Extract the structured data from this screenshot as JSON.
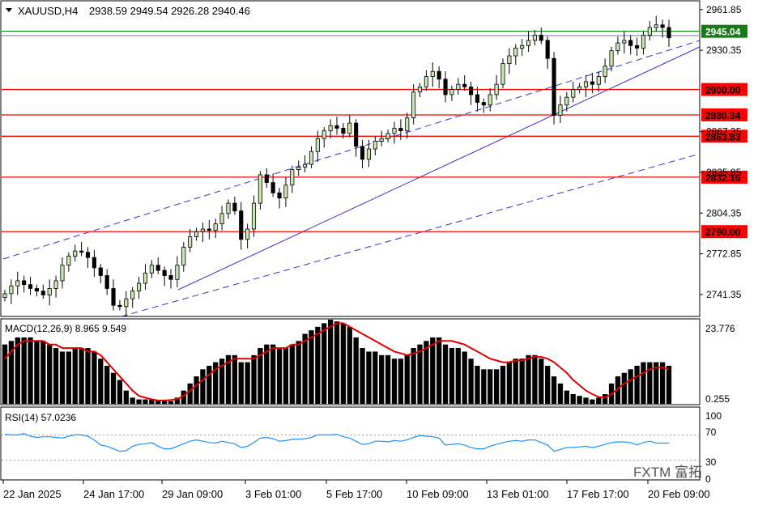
{
  "header": {
    "symbol": "XAUUSD,H4",
    "ohlc": "2938.59 2949.54 2926.28 2940.46"
  },
  "levels": [
    {
      "value": 2945.04,
      "label": "2945.04",
      "color": "#1f8a1f",
      "badge": "green"
    },
    {
      "value": 2900.0,
      "label": "2900.00",
      "color": "#ff0000",
      "badge": "red"
    },
    {
      "value": 2880.34,
      "label": "2880.34",
      "color": "#ff0000",
      "badge": "red"
    },
    {
      "value": 2863.83,
      "label": "2863.83",
      "color": "#ff0000",
      "badge": "red"
    },
    {
      "value": 2832.16,
      "label": "2832.16",
      "color": "#ff0000",
      "badge": "red"
    },
    {
      "value": 2790.0,
      "label": "2790.00",
      "color": "#ff0000",
      "badge": "red"
    }
  ],
  "macd": {
    "label": "MACD(12,26,9) 8.965 9.549",
    "top_tick": "23.776",
    "bottom_tick": "0.255"
  },
  "rsi": {
    "label": "RSI(14) 57.0236",
    "ticks": [
      "100",
      "70",
      "30",
      "0"
    ]
  },
  "watermark": "FXTM 富拓",
  "chart_data": {
    "type": "candlestick",
    "symbol": "XAUUSD",
    "timeframe": "H4",
    "price_axis": {
      "range": [
        2725,
        2968
      ],
      "ticks": [
        2961.85,
        2930.35,
        2867.35,
        2835.85,
        2804.35,
        2772.85,
        2741.35
      ],
      "tick_labels": [
        "2961.85",
        "2930.35",
        "2867.35",
        "2835.85",
        "2804.35",
        "2772.85",
        "2741.35"
      ]
    },
    "time_axis": {
      "tick_labels": [
        "22 Jan 2025",
        "24 Jan 17:00",
        "29 Jan 09:00",
        "3 Feb 01:00",
        "5 Feb 17:00",
        "10 Feb 09:00",
        "13 Feb 01:00",
        "17 Feb 17:00",
        "20 Feb 09:00"
      ]
    },
    "close": [
      2742,
      2748,
      2752,
      2749,
      2746,
      2744,
      2741,
      2746,
      2752,
      2764,
      2771,
      2775,
      2774,
      2770,
      2762,
      2756,
      2746,
      2733,
      2732,
      2738,
      2744,
      2750,
      2758,
      2764,
      2760,
      2756,
      2753,
      2764,
      2778,
      2786,
      2790,
      2792,
      2791,
      2796,
      2804,
      2812,
      2806,
      2784,
      2792,
      2812,
      2834,
      2828,
      2820,
      2816,
      2826,
      2838,
      2840,
      2842,
      2852,
      2862,
      2868,
      2872,
      2870,
      2866,
      2874,
      2856,
      2846,
      2854,
      2860,
      2862,
      2866,
      2870,
      2868,
      2878,
      2898,
      2902,
      2910,
      2914,
      2908,
      2896,
      2900,
      2904,
      2902,
      2896,
      2890,
      2888,
      2896,
      2904,
      2920,
      2926,
      2932,
      2934,
      2938,
      2942,
      2938,
      2924,
      2880,
      2888,
      2894,
      2900,
      2902,
      2906,
      2904,
      2910,
      2918,
      2930,
      2936,
      2938,
      2934,
      2932,
      2942,
      2948,
      2950,
      2948,
      2940
    ],
    "rsi": [
      71,
      70,
      70,
      72,
      68,
      66,
      67,
      67,
      66,
      65,
      68,
      70,
      70,
      68,
      62,
      54,
      52,
      48,
      44,
      45,
      52,
      55,
      56,
      58,
      52,
      48,
      48,
      52,
      56,
      60,
      62,
      60,
      58,
      57,
      60,
      58,
      56,
      50,
      52,
      58,
      65,
      66,
      64,
      60,
      61,
      63,
      63,
      64,
      66,
      70,
      70,
      70,
      71,
      67,
      65,
      60,
      55,
      56,
      60,
      60,
      59,
      61,
      60,
      62,
      66,
      69,
      68,
      67,
      65,
      54,
      55,
      56,
      54,
      50,
      48,
      48,
      52,
      55,
      58,
      60,
      61,
      60,
      62,
      62,
      58,
      54,
      44,
      47,
      50,
      50,
      51,
      52,
      50,
      52,
      55,
      58,
      59,
      59,
      58,
      54,
      58,
      60,
      57,
      57,
      57
    ],
    "macd_hist": [
      17,
      18,
      19,
      19,
      19,
      18,
      18,
      17,
      16,
      15,
      15,
      16,
      16,
      16,
      15,
      13,
      11,
      9,
      7,
      4,
      2,
      1.5,
      1.5,
      1.5,
      1.2,
      1,
      1,
      2,
      4,
      6,
      8,
      10,
      11,
      12,
      13,
      14,
      14,
      12,
      12,
      14,
      16,
      17,
      17,
      16,
      16,
      17,
      18,
      20,
      21,
      22,
      23,
      24,
      23.5,
      23,
      22,
      19,
      16,
      15,
      15,
      14,
      14,
      13,
      13,
      14,
      16,
      17,
      18,
      19,
      19,
      17,
      16,
      16,
      15,
      13,
      11,
      10,
      10,
      10,
      11,
      12,
      13,
      13,
      14,
      14,
      13,
      11,
      8,
      6,
      4,
      3,
      2.5,
      2,
      1.5,
      2,
      3,
      6,
      8,
      9,
      10,
      11,
      12,
      12,
      12,
      12,
      11
    ],
    "macd_signal": [
      13,
      15,
      17,
      18,
      18,
      18,
      18,
      17,
      17,
      16,
      16,
      16,
      16,
      15,
      15,
      14,
      12,
      10,
      8,
      6,
      4,
      2.5,
      2,
      1.5,
      1.2,
      1.2,
      1.3,
      1.6,
      2.5,
      4,
      5.5,
      7,
      8.5,
      10,
      11,
      12,
      13,
      13,
      13,
      13,
      14,
      15,
      16,
      16,
      16,
      17,
      17,
      18,
      19,
      20,
      21,
      22,
      23,
      23,
      22,
      21,
      20,
      19,
      18,
      17,
      16,
      15,
      14.5,
      14,
      14.5,
      15,
      16,
      17,
      18,
      18,
      18,
      17.5,
      17,
      16,
      15,
      14,
      13,
      12.5,
      12,
      12,
      12.5,
      12.5,
      13,
      13.5,
      13.5,
      13,
      12,
      10.5,
      9,
      7,
      5.5,
      4,
      3,
      2.2,
      2,
      3,
      4.5,
      6,
      7,
      8,
      9,
      10,
      10.5,
      10.5,
      10
    ]
  }
}
